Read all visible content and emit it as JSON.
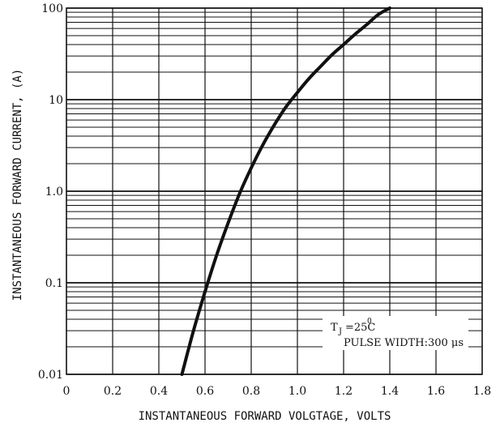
{
  "chart_data": {
    "type": "line",
    "xlabel": "INSTANTANEOUS FORWARD VOLGTAGE, VOLTS",
    "ylabel": "INSTANTANEOUS FORWARD CURRENT, (A)",
    "x_ticks": [
      "0",
      "0.2",
      "0.4",
      "0.6",
      "0.8",
      "1.0",
      "1.2",
      "1.4",
      "1.6",
      "1.8"
    ],
    "y_ticks": [
      "0.01",
      "0.1",
      "1.0",
      "10",
      "100"
    ],
    "xlim": [
      0,
      1.8
    ],
    "ylim": [
      0.01,
      100
    ],
    "yscale": "log",
    "grid": true,
    "series": [
      {
        "x": [
          0.5,
          0.55,
          0.6,
          0.65,
          0.7,
          0.75,
          0.8,
          0.85,
          0.9,
          0.95,
          1.0,
          1.05,
          1.1,
          1.15,
          1.2,
          1.25,
          1.3,
          1.35,
          1.4
        ],
        "y": [
          0.01,
          0.03,
          0.08,
          0.2,
          0.45,
          0.95,
          1.8,
          3.2,
          5.3,
          8.3,
          12,
          17,
          23,
          31,
          40,
          52,
          66,
          85,
          100
        ]
      }
    ],
    "annotations": [
      "T",
      "J",
      "=25C",
      "0",
      "PULSE WIDTH:300 μs"
    ]
  }
}
